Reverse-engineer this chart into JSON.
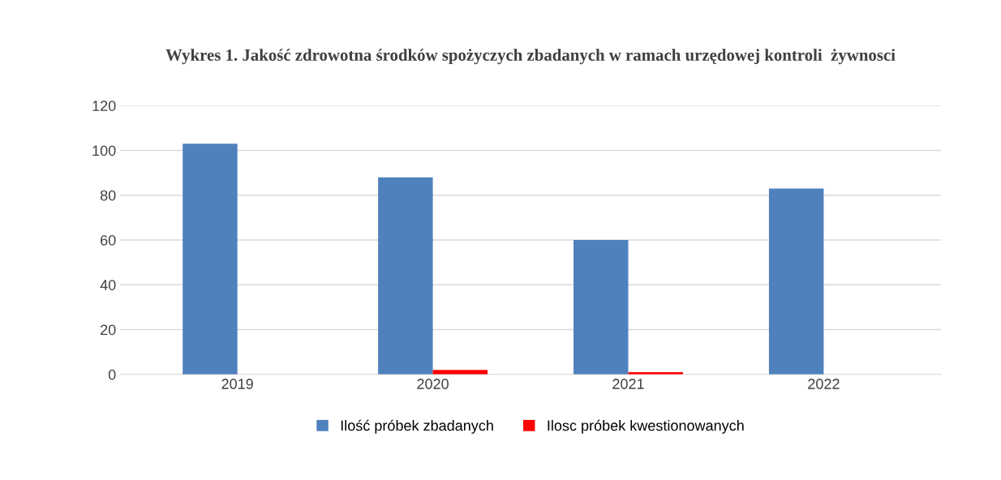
{
  "chart_data": {
    "type": "bar",
    "title": "Wykres 1. Jakość zdrowotna środków spożyczych zbadanych w ramach urzędowej kontroli  żywnosci",
    "categories": [
      "2019",
      "2020",
      "2021",
      "2022"
    ],
    "series": [
      {
        "name": "Ilość próbek zbadanych",
        "color": "#4f81bd",
        "values": [
          103,
          88,
          60,
          83
        ]
      },
      {
        "name": "Ilosc próbek kwestionowanych",
        "color": "#ff0000",
        "values": [
          0,
          2,
          1,
          0
        ]
      }
    ],
    "ylim": [
      0,
      120
    ],
    "yticks": [
      0,
      20,
      40,
      60,
      80,
      100,
      120
    ],
    "grid": "y",
    "legend": "bottom"
  }
}
